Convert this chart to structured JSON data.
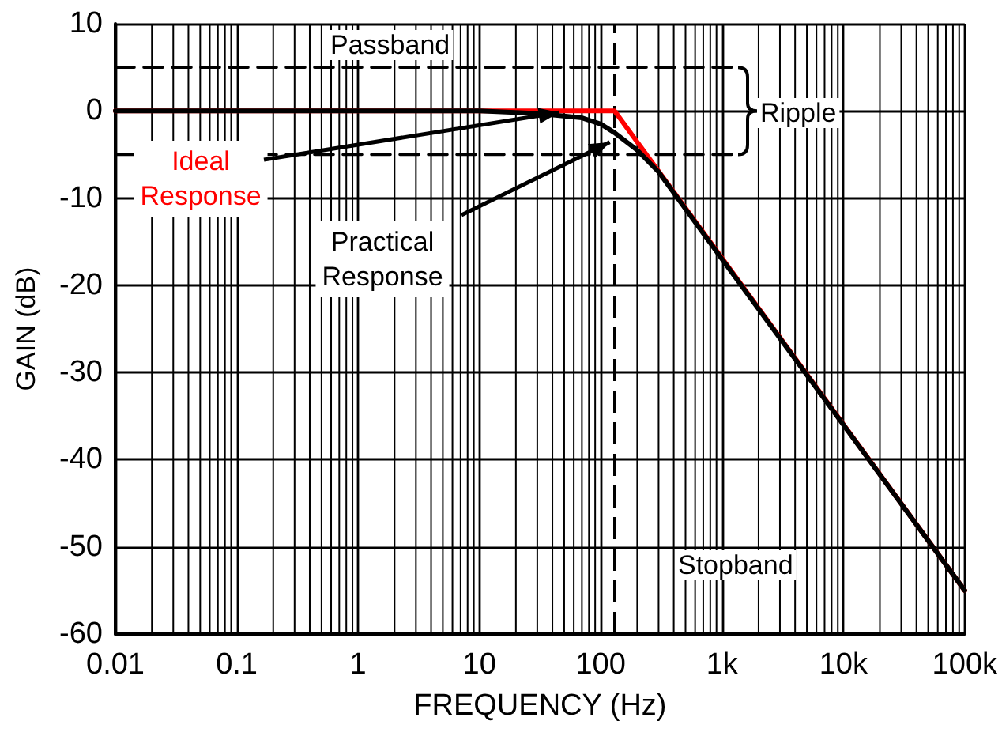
{
  "chart_data": {
    "type": "line",
    "xlabel": "FREQUENCY (Hz)",
    "ylabel": "GAIN (dB)",
    "xlim": [
      0.01,
      100000
    ],
    "xticks": [
      0.01,
      0.1,
      1,
      10,
      100,
      {
        "value": 1000,
        "label": "1k"
      },
      {
        "value": 10000,
        "label": "10k"
      },
      {
        "value": 100000,
        "label": "100k"
      }
    ],
    "ylim": [
      -60,
      10
    ],
    "yticks": [
      -60,
      -50,
      -40,
      -30,
      -20,
      -10,
      0,
      10
    ],
    "log": "x",
    "grid": true,
    "marker": "none",
    "line_style": "solid",
    "series": [
      {
        "line_style": "dashed",
        "color": "#000000",
        "x": [
          0.01,
          1200
        ],
        "values": [
          5,
          5
        ]
      },
      {
        "line_style": "dashed",
        "color": "#000000",
        "x": [
          0.01,
          1200
        ],
        "values": [
          -5,
          -5
        ]
      },
      {
        "name": "Ideal Response",
        "color": "#ff0000",
        "x": [
          0.01,
          130,
          100000
        ],
        "values": [
          0,
          0,
          -55
        ]
      },
      {
        "name": "Practical Response",
        "color": "#000000",
        "x": [
          0.01,
          10,
          30,
          70,
          100,
          130,
          200,
          300,
          1000,
          10000,
          100000
        ],
        "values": [
          0,
          0,
          -0.3,
          -0.8,
          -1.5,
          -2.5,
          -4.5,
          -7,
          -17,
          -36,
          -55
        ]
      }
    ],
    "ref_lines": [
      {
        "axis": "x",
        "value": 130,
        "line_style": "dashed"
      }
    ],
    "annotations": [
      "Passband",
      "Ripple",
      "Stopband"
    ]
  }
}
